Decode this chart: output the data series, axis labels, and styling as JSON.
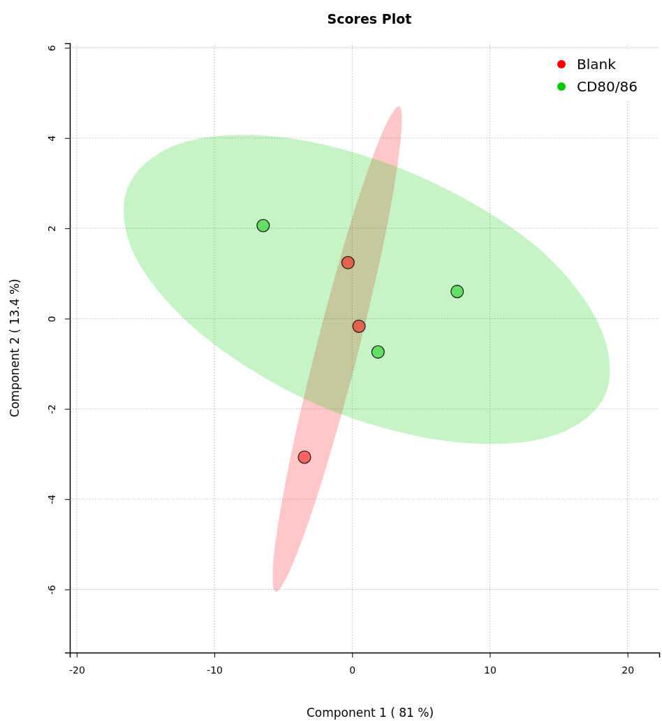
{
  "chart_data": {
    "type": "scatter",
    "title": "Scores Plot",
    "xlabel": "Component 1 ( 81 %)",
    "ylabel": "Component 2 ( 13.4 %)",
    "xlim": [
      -20.5,
      22.3
    ],
    "ylim": [
      -7.4,
      6.1
    ],
    "xticks": [
      -20,
      -10,
      0,
      10,
      20
    ],
    "yticks": [
      -6,
      -4,
      -2,
      0,
      2,
      4,
      6
    ],
    "grid": true,
    "legend": "top right",
    "series": [
      {
        "type": "area",
        "marker": "none",
        "color": "#ff0000",
        "x": [
          3.41,
          3.51,
          2.45,
          0.41,
          -2.03,
          -4.21,
          -5.55,
          -5.68,
          -4.59,
          -2.54,
          -0.11,
          2.07
        ],
        "values": [
          4.7,
          3.92,
          1.91,
          -0.78,
          -3.44,
          -5.36,
          -6.05,
          -5.25,
          -3.24,
          -0.55,
          2.12,
          4.03
        ]
      },
      {
        "type": "area",
        "marker": "none",
        "color": "#00cc00",
        "x": [
          -16.23,
          -12.07,
          -4.36,
          4.75,
          13.1,
          17.89,
          18.37,
          14.21,
          6.53,
          -2.6,
          -10.77,
          -15.76
        ],
        "values": [
          2.95,
          3.92,
          3.99,
          3.17,
          1.67,
          -0.11,
          -1.69,
          -2.63,
          -2.7,
          -1.9,
          -0.39,
          1.38
        ]
      },
      {
        "name": "Blank",
        "marker": "circle",
        "color": "#ff0000",
        "x": [
          -0.3,
          0.5,
          -3.46
        ],
        "values": [
          1.24,
          -0.17,
          -3.07
        ]
      },
      {
        "name": "CD80/86",
        "marker": "circle",
        "color": "#00cc00",
        "x": [
          -6.46,
          7.63,
          1.88
        ],
        "values": [
          2.06,
          0.6,
          -0.74
        ]
      }
    ]
  }
}
